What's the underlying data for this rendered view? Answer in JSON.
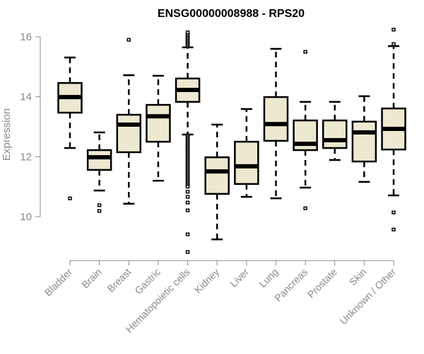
{
  "chart_data": {
    "type": "boxplot",
    "title": "ENSG00000008988 - RPS20",
    "xlabel": "",
    "ylabel": "Expression",
    "ylim": [
      8.7,
      16.25
    ],
    "yticks": [
      10,
      12,
      14,
      16
    ],
    "grid": false,
    "box_color": "#EDE8D0",
    "categories": [
      "Bladder",
      "Brain",
      "Breast",
      "Gastric",
      "Hematopoietic cells",
      "Kidney",
      "Liver",
      "Lung",
      "Pancreas",
      "Prostate",
      "Skin",
      "Unknown / Other"
    ],
    "boxes": [
      {
        "name": "Bladder",
        "whisker_low": 12.29,
        "q1": 13.47,
        "median": 13.99,
        "q3": 14.46,
        "whisker_high": 15.31,
        "outliers": [
          10.61
        ]
      },
      {
        "name": "Brain",
        "whisker_low": 10.87,
        "q1": 11.56,
        "median": 11.98,
        "q3": 12.22,
        "whisker_high": 12.81,
        "outliers": [
          10.38,
          10.19
        ]
      },
      {
        "name": "Breast",
        "whisker_low": 10.43,
        "q1": 12.15,
        "median": 13.07,
        "q3": 13.4,
        "whisker_high": 14.72,
        "outliers": [
          15.9
        ]
      },
      {
        "name": "Gastric",
        "whisker_low": 11.2,
        "q1": 12.5,
        "median": 13.35,
        "q3": 13.73,
        "whisker_high": 14.7,
        "outliers": []
      },
      {
        "name": "Hematopoietic cells",
        "whisker_low": 12.74,
        "q1": 13.83,
        "median": 14.23,
        "q3": 14.61,
        "whisker_high": 15.65,
        "outliers": [
          15.7,
          15.75,
          15.8,
          15.85,
          15.9,
          15.95,
          16.0,
          16.05,
          16.1,
          16.15,
          12.7,
          12.65,
          12.6,
          12.55,
          12.5,
          12.45,
          12.4,
          12.35,
          12.3,
          12.25,
          12.2,
          12.15,
          12.1,
          12.05,
          12.0,
          11.95,
          11.9,
          11.85,
          11.8,
          11.75,
          11.7,
          11.65,
          11.6,
          11.55,
          11.5,
          11.45,
          11.4,
          11.35,
          11.3,
          11.25,
          11.2,
          11.15,
          11.1,
          11.05,
          11.0,
          10.83,
          10.66,
          10.47,
          10.21,
          9.41,
          8.82
        ]
      },
      {
        "name": "Kidney",
        "whisker_low": 9.24,
        "q1": 10.76,
        "median": 11.51,
        "q3": 11.98,
        "whisker_high": 13.07,
        "outliers": []
      },
      {
        "name": "Liver",
        "whisker_low": 10.66,
        "q1": 11.09,
        "median": 11.68,
        "q3": 12.5,
        "whisker_high": 13.59,
        "outliers": []
      },
      {
        "name": "Lung",
        "whisker_low": 10.61,
        "q1": 12.53,
        "median": 13.09,
        "q3": 13.99,
        "whisker_high": 15.6,
        "outliers": []
      },
      {
        "name": "Pancreas",
        "whisker_low": 10.97,
        "q1": 12.22,
        "median": 12.43,
        "q3": 13.21,
        "whisker_high": 13.83,
        "outliers": [
          15.5,
          10.28
        ]
      },
      {
        "name": "Prostate",
        "whisker_low": 11.89,
        "q1": 12.29,
        "median": 12.55,
        "q3": 13.21,
        "whisker_high": 13.83,
        "outliers": []
      },
      {
        "name": "Skin",
        "whisker_low": 11.16,
        "q1": 11.84,
        "median": 12.81,
        "q3": 13.17,
        "whisker_high": 14.02,
        "outliers": []
      },
      {
        "name": "Unknown / Other",
        "whisker_low": 10.71,
        "q1": 12.24,
        "median": 12.93,
        "q3": 13.61,
        "whisker_high": 15.69,
        "outliers": [
          16.24,
          15.76,
          10.14,
          9.57
        ]
      }
    ]
  }
}
